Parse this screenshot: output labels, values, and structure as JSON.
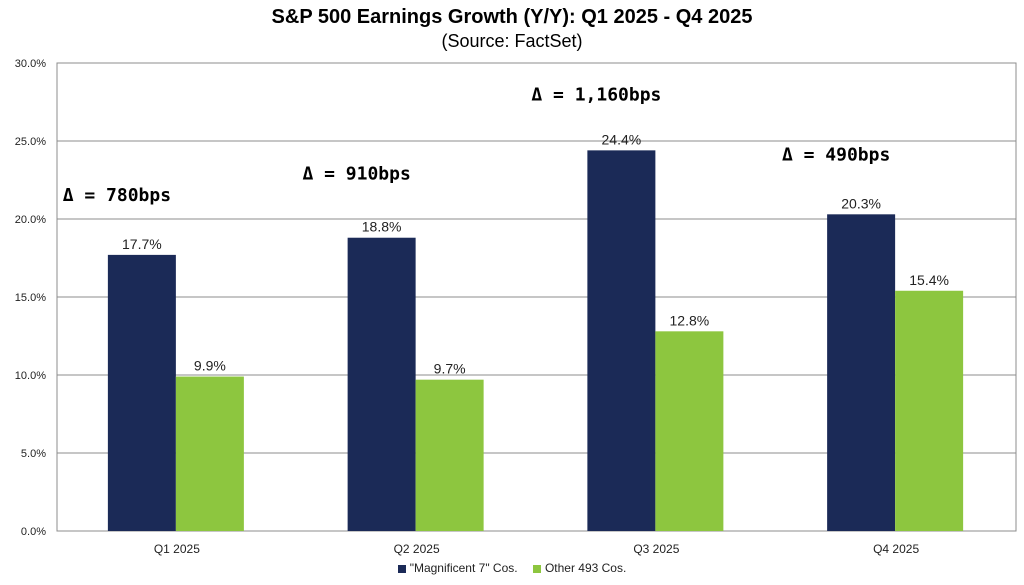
{
  "chart_data": {
    "type": "bar",
    "title": "S&P 500 Earnings Growth (Y/Y): Q1 2025 - Q4 2025",
    "subtitle": "(Source: FactSet)",
    "categories": [
      "Q1 2025",
      "Q2 2025",
      "Q3 2025",
      "Q4 2025"
    ],
    "series": [
      {
        "name": "\"Magnificent 7\" Cos.",
        "color": "#1b2a57",
        "values": [
          17.7,
          18.8,
          24.4,
          20.3
        ],
        "labels": [
          "17.7%",
          "18.8%",
          "24.4%",
          "20.3%"
        ]
      },
      {
        "name": "Other 493 Cos.",
        "color": "#8dc63f",
        "values": [
          9.9,
          9.7,
          12.8,
          15.4
        ],
        "labels": [
          "9.9%",
          "9.7%",
          "12.8%",
          "15.4%"
        ]
      }
    ],
    "annotations": [
      "Δ = 780bps",
      "Δ = 910bps",
      "Δ = 1,160bps",
      "Δ = 490bps"
    ],
    "ylim": [
      0,
      30
    ],
    "yticks": [
      "0.0%",
      "5.0%",
      "10.0%",
      "15.0%",
      "20.0%",
      "25.0%",
      "30.0%"
    ],
    "grid": true,
    "legend_position": "bottom"
  }
}
